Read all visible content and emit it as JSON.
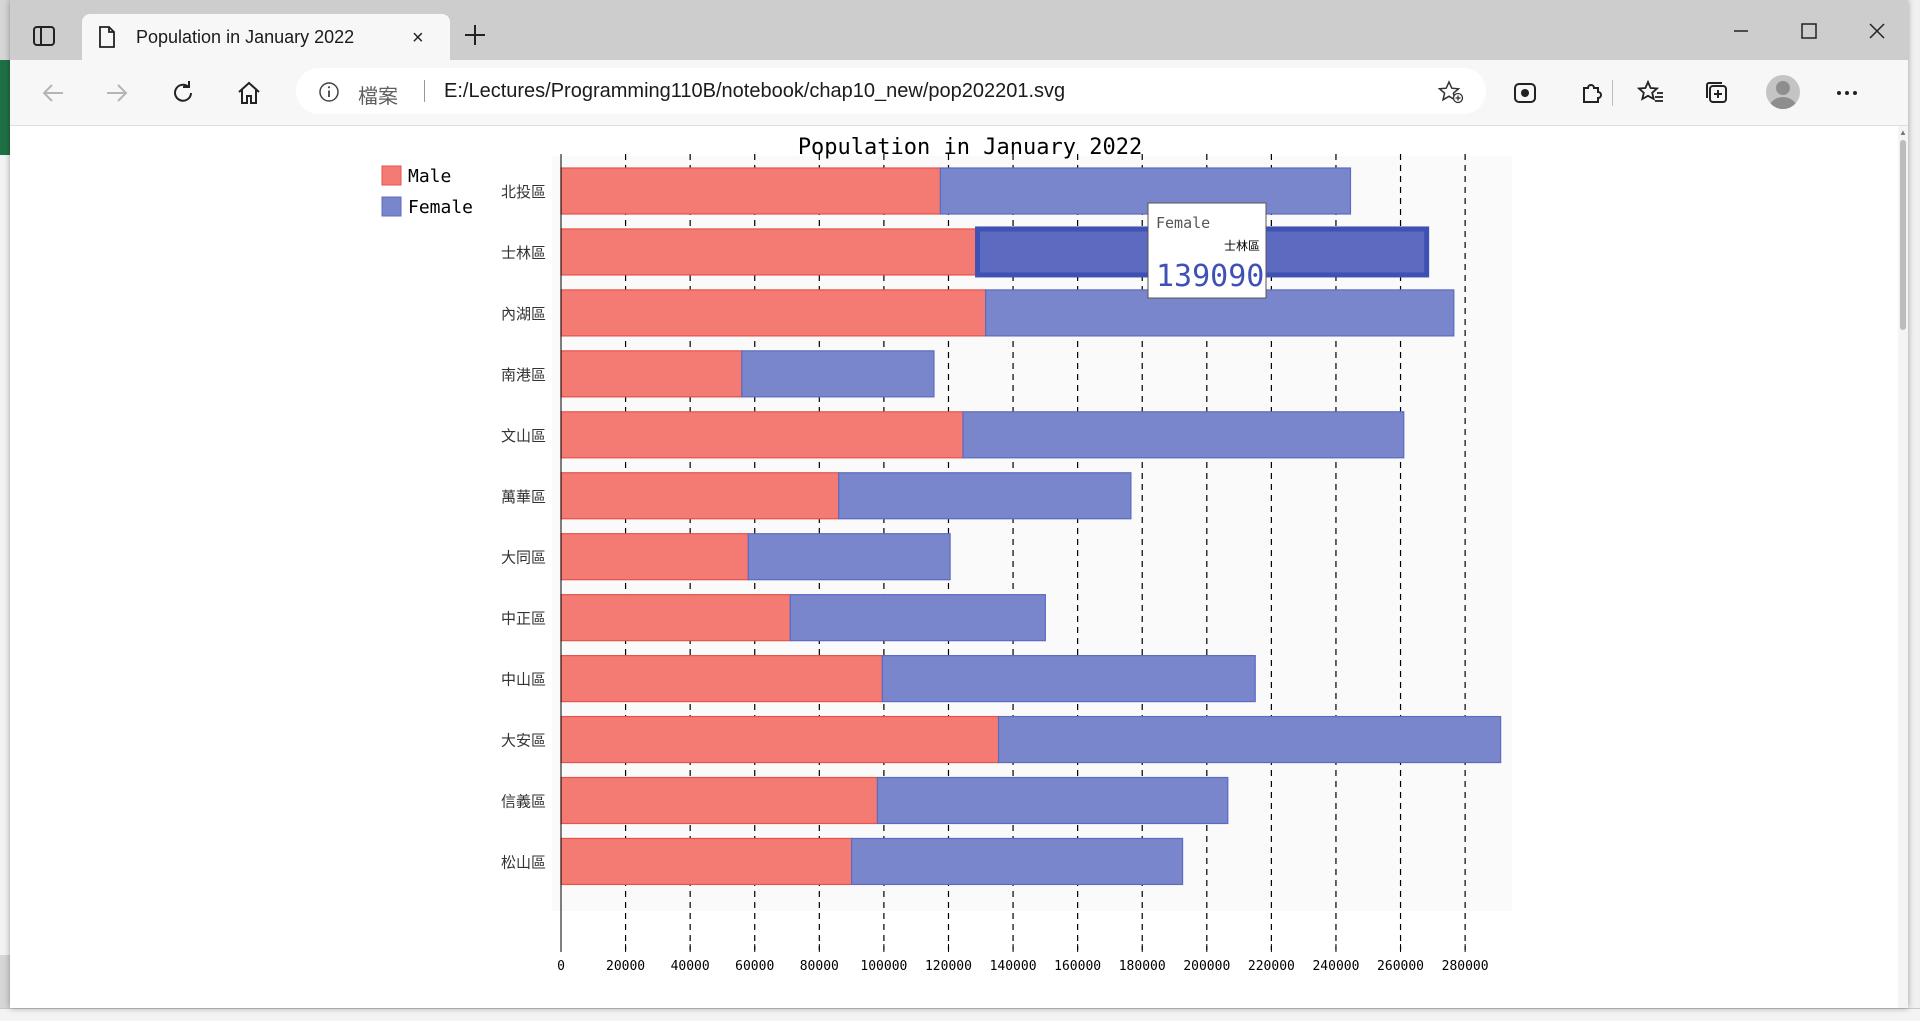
{
  "browser": {
    "tab_title": "Population in January 2022",
    "new_tab_label": "+",
    "close_label": "×",
    "address_label": "檔案",
    "url": "E:/Lectures/Programming110B/notebook/chap10_new/pop202201.svg"
  },
  "chart_data": {
    "type": "bar",
    "orientation": "horizontal",
    "stacked": true,
    "title": "Population in January 2022",
    "categories": [
      "北投區",
      "士林區",
      "內湖區",
      "南港區",
      "文山區",
      "萬華區",
      "大同區",
      "中正區",
      "中山區",
      "大安區",
      "信義區",
      "松山區"
    ],
    "series": [
      {
        "name": "Male",
        "color": "#f47b73",
        "values": [
          117500,
          129000,
          131500,
          56000,
          124500,
          86000,
          58000,
          71000,
          99500,
          135500,
          98000,
          90000
        ]
      },
      {
        "name": "Female",
        "color": "#7986cb",
        "values": [
          127000,
          139090,
          145000,
          59500,
          136500,
          90500,
          62500,
          79000,
          115500,
          155500,
          108500,
          102500
        ]
      }
    ],
    "xlim": [
      0,
      295000
    ],
    "xticks": [
      "0",
      "20000",
      "40000",
      "60000",
      "80000",
      "100000",
      "120000",
      "140000",
      "160000",
      "180000",
      "200000",
      "220000",
      "240000",
      "260000",
      "280000"
    ],
    "grid": true,
    "legend": "top-left",
    "tooltip": {
      "series": "Female",
      "category": "士林區",
      "value": "139090"
    }
  }
}
